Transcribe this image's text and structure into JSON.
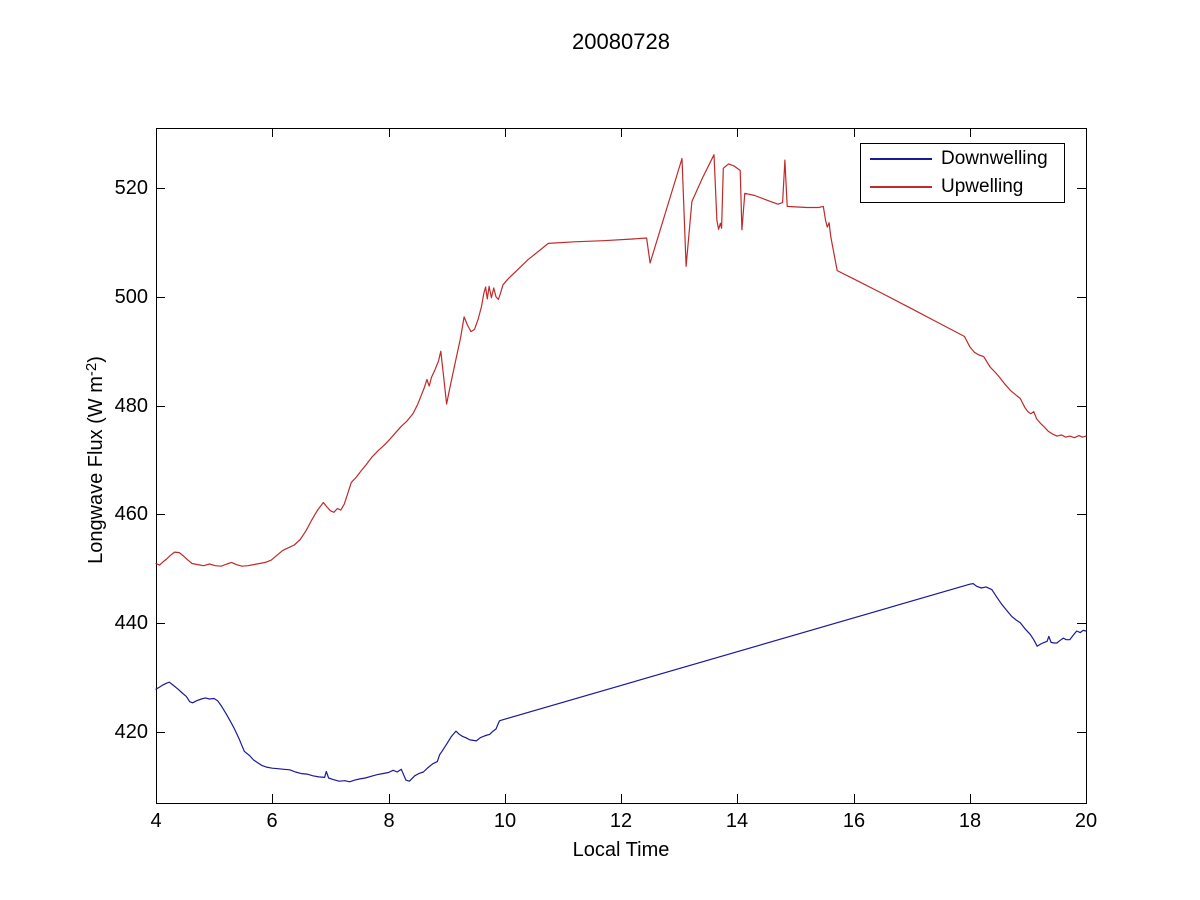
{
  "figure": {
    "background": "#ffffff"
  },
  "chart_data": {
    "type": "line",
    "title": "20080728",
    "xlabel": "Local Time",
    "ylabel": {
      "main": "Longwave Flux (W m",
      "sup": "-2",
      "end": ")"
    },
    "xlim": [
      4,
      20
    ],
    "ylim": [
      407,
      531
    ],
    "xticks": [
      4,
      6,
      8,
      10,
      12,
      14,
      16,
      18,
      20
    ],
    "yticks": [
      420,
      440,
      460,
      480,
      500,
      520
    ],
    "grid": false,
    "box": true,
    "axis_color": "#000000",
    "legend": {
      "position": "top-right",
      "entries": [
        {
          "label": "Downwelling",
          "color": "#1A1A99"
        },
        {
          "label": "Upwelling",
          "color": "#C02A2A"
        }
      ]
    },
    "series": [
      {
        "name": "Downwelling",
        "color": "#1A1A99",
        "points": [
          [
            4.0,
            427.9
          ],
          [
            4.06,
            428.3
          ],
          [
            4.12,
            428.7
          ],
          [
            4.18,
            429.0
          ],
          [
            4.23,
            429.2
          ],
          [
            4.3,
            428.6
          ],
          [
            4.38,
            427.9
          ],
          [
            4.45,
            427.2
          ],
          [
            4.52,
            426.6
          ],
          [
            4.58,
            425.6
          ],
          [
            4.63,
            425.4
          ],
          [
            4.7,
            425.8
          ],
          [
            4.78,
            426.1
          ],
          [
            4.85,
            426.3
          ],
          [
            4.92,
            426.1
          ],
          [
            5.0,
            426.2
          ],
          [
            5.06,
            425.8
          ],
          [
            5.12,
            424.9
          ],
          [
            5.2,
            423.5
          ],
          [
            5.28,
            422.0
          ],
          [
            5.35,
            420.6
          ],
          [
            5.43,
            418.8
          ],
          [
            5.52,
            416.5
          ],
          [
            5.61,
            415.7
          ],
          [
            5.68,
            414.9
          ],
          [
            5.75,
            414.4
          ],
          [
            5.82,
            413.9
          ],
          [
            5.9,
            413.6
          ],
          [
            6.0,
            413.4
          ],
          [
            6.1,
            413.3
          ],
          [
            6.2,
            413.2
          ],
          [
            6.3,
            413.1
          ],
          [
            6.4,
            412.7
          ],
          [
            6.5,
            412.4
          ],
          [
            6.6,
            412.3
          ],
          [
            6.7,
            412.0
          ],
          [
            6.8,
            411.8
          ],
          [
            6.9,
            411.7
          ],
          [
            6.93,
            412.8
          ],
          [
            6.97,
            411.6
          ],
          [
            7.05,
            411.3
          ],
          [
            7.15,
            411.0
          ],
          [
            7.25,
            411.1
          ],
          [
            7.33,
            410.9
          ],
          [
            7.42,
            411.2
          ],
          [
            7.5,
            411.4
          ],
          [
            7.6,
            411.6
          ],
          [
            7.7,
            411.9
          ],
          [
            7.8,
            412.2
          ],
          [
            7.9,
            412.4
          ],
          [
            8.0,
            412.6
          ],
          [
            8.08,
            413.0
          ],
          [
            8.15,
            412.7
          ],
          [
            8.22,
            413.2
          ],
          [
            8.3,
            411.2
          ],
          [
            8.36,
            411.0
          ],
          [
            8.45,
            412.0
          ],
          [
            8.52,
            412.4
          ],
          [
            8.6,
            412.7
          ],
          [
            8.68,
            413.5
          ],
          [
            8.76,
            414.2
          ],
          [
            8.84,
            414.6
          ],
          [
            8.88,
            415.9
          ],
          [
            8.92,
            416.5
          ],
          [
            9.0,
            417.8
          ],
          [
            9.08,
            419.2
          ],
          [
            9.16,
            420.2
          ],
          [
            9.22,
            419.6
          ],
          [
            9.28,
            419.2
          ],
          [
            9.33,
            419.0
          ],
          [
            9.4,
            418.6
          ],
          [
            9.46,
            418.5
          ],
          [
            9.51,
            418.4
          ],
          [
            9.58,
            419.0
          ],
          [
            9.65,
            419.3
          ],
          [
            9.7,
            419.5
          ],
          [
            9.74,
            419.6
          ],
          [
            9.8,
            420.2
          ],
          [
            9.85,
            420.6
          ],
          [
            9.88,
            421.4
          ],
          [
            9.91,
            422.1
          ],
          [
            9.97,
            422.3
          ],
          [
            18.0,
            447.2
          ],
          [
            18.06,
            447.3
          ],
          [
            18.12,
            446.8
          ],
          [
            18.2,
            446.5
          ],
          [
            18.28,
            446.7
          ],
          [
            18.38,
            446.2
          ],
          [
            18.46,
            444.9
          ],
          [
            18.55,
            443.5
          ],
          [
            18.64,
            442.3
          ],
          [
            18.72,
            441.3
          ],
          [
            18.8,
            440.6
          ],
          [
            18.87,
            440.1
          ],
          [
            18.95,
            439.0
          ],
          [
            19.04,
            438.0
          ],
          [
            19.1,
            437.0
          ],
          [
            19.16,
            435.8
          ],
          [
            19.22,
            436.2
          ],
          [
            19.28,
            436.5
          ],
          [
            19.33,
            436.7
          ],
          [
            19.36,
            437.6
          ],
          [
            19.4,
            436.5
          ],
          [
            19.45,
            436.4
          ],
          [
            19.5,
            436.4
          ],
          [
            19.56,
            436.9
          ],
          [
            19.61,
            437.3
          ],
          [
            19.66,
            437.0
          ],
          [
            19.72,
            437.0
          ],
          [
            19.78,
            437.8
          ],
          [
            19.84,
            438.6
          ],
          [
            19.9,
            438.3
          ],
          [
            19.95,
            438.7
          ],
          [
            20.0,
            438.6
          ]
        ]
      },
      {
        "name": "Upwelling",
        "color": "#C02A2A",
        "points": [
          [
            4.0,
            451.0
          ],
          [
            4.06,
            450.7
          ],
          [
            4.12,
            451.3
          ],
          [
            4.18,
            451.8
          ],
          [
            4.25,
            452.5
          ],
          [
            4.32,
            453.1
          ],
          [
            4.4,
            453.0
          ],
          [
            4.48,
            452.3
          ],
          [
            4.55,
            451.6
          ],
          [
            4.62,
            451.0
          ],
          [
            4.72,
            450.8
          ],
          [
            4.82,
            450.6
          ],
          [
            4.92,
            450.9
          ],
          [
            5.02,
            450.6
          ],
          [
            5.12,
            450.5
          ],
          [
            5.22,
            450.9
          ],
          [
            5.3,
            451.2
          ],
          [
            5.38,
            450.8
          ],
          [
            5.48,
            450.5
          ],
          [
            5.58,
            450.6
          ],
          [
            5.68,
            450.8
          ],
          [
            5.78,
            451.0
          ],
          [
            5.88,
            451.2
          ],
          [
            5.98,
            451.6
          ],
          [
            6.08,
            452.5
          ],
          [
            6.18,
            453.4
          ],
          [
            6.28,
            453.9
          ],
          [
            6.38,
            454.4
          ],
          [
            6.48,
            455.4
          ],
          [
            6.58,
            457.0
          ],
          [
            6.68,
            459.0
          ],
          [
            6.78,
            460.8
          ],
          [
            6.88,
            462.2
          ],
          [
            6.94,
            461.4
          ],
          [
            7.0,
            460.7
          ],
          [
            7.06,
            460.4
          ],
          [
            7.12,
            461.1
          ],
          [
            7.18,
            460.8
          ],
          [
            7.24,
            461.9
          ],
          [
            7.3,
            463.9
          ],
          [
            7.36,
            465.9
          ],
          [
            7.44,
            466.8
          ],
          [
            7.52,
            467.9
          ],
          [
            7.62,
            469.2
          ],
          [
            7.72,
            470.6
          ],
          [
            7.82,
            471.7
          ],
          [
            7.92,
            472.7
          ],
          [
            8.02,
            473.8
          ],
          [
            8.12,
            475.0
          ],
          [
            8.22,
            476.2
          ],
          [
            8.32,
            477.2
          ],
          [
            8.42,
            478.5
          ],
          [
            8.5,
            480.2
          ],
          [
            8.56,
            481.8
          ],
          [
            8.62,
            483.4
          ],
          [
            8.66,
            484.8
          ],
          [
            8.7,
            483.6
          ],
          [
            8.74,
            485.2
          ],
          [
            8.8,
            486.6
          ],
          [
            8.86,
            488.2
          ],
          [
            8.9,
            490.0
          ],
          [
            8.95,
            485.2
          ],
          [
            9.0,
            480.3
          ],
          [
            9.06,
            483.5
          ],
          [
            9.12,
            486.5
          ],
          [
            9.18,
            489.5
          ],
          [
            9.24,
            492.5
          ],
          [
            9.3,
            496.3
          ],
          [
            9.36,
            494.8
          ],
          [
            9.42,
            493.6
          ],
          [
            9.48,
            494.0
          ],
          [
            9.54,
            495.8
          ],
          [
            9.6,
            498.2
          ],
          [
            9.64,
            500.6
          ],
          [
            9.67,
            501.8
          ],
          [
            9.7,
            499.6
          ],
          [
            9.73,
            501.9
          ],
          [
            9.77,
            499.8
          ],
          [
            9.81,
            501.6
          ],
          [
            9.85,
            500.0
          ],
          [
            9.89,
            499.5
          ],
          [
            9.93,
            500.8
          ],
          [
            9.97,
            502.2
          ],
          [
            10.05,
            503.2
          ],
          [
            10.4,
            506.8
          ],
          [
            10.75,
            509.8
          ],
          [
            11.2,
            510.1
          ],
          [
            11.7,
            510.3
          ],
          [
            12.2,
            510.6
          ],
          [
            12.44,
            510.8
          ],
          [
            12.5,
            506.2
          ],
          [
            13.05,
            525.4
          ],
          [
            13.12,
            505.6
          ],
          [
            13.22,
            517.5
          ],
          [
            13.4,
            521.8
          ],
          [
            13.6,
            526.1
          ],
          [
            13.65,
            514.0
          ],
          [
            13.68,
            512.4
          ],
          [
            13.71,
            513.5
          ],
          [
            13.73,
            512.6
          ],
          [
            13.76,
            523.6
          ],
          [
            13.85,
            524.4
          ],
          [
            13.95,
            524.0
          ],
          [
            14.05,
            523.2
          ],
          [
            14.08,
            512.3
          ],
          [
            14.13,
            519.0
          ],
          [
            14.3,
            518.6
          ],
          [
            14.5,
            517.8
          ],
          [
            14.7,
            517.0
          ],
          [
            14.78,
            517.3
          ],
          [
            14.82,
            525.1
          ],
          [
            14.86,
            516.6
          ],
          [
            15.0,
            516.5
          ],
          [
            15.2,
            516.4
          ],
          [
            15.4,
            516.4
          ],
          [
            15.48,
            516.6
          ],
          [
            15.52,
            514.0
          ],
          [
            15.55,
            512.8
          ],
          [
            15.58,
            513.6
          ],
          [
            15.61,
            511.0
          ],
          [
            15.72,
            504.8
          ],
          [
            16.0,
            503.3
          ],
          [
            16.46,
            500.8
          ],
          [
            17.0,
            497.8
          ],
          [
            17.5,
            495.0
          ],
          [
            17.91,
            492.7
          ],
          [
            18.0,
            490.8
          ],
          [
            18.08,
            489.8
          ],
          [
            18.16,
            489.3
          ],
          [
            18.24,
            489.0
          ],
          [
            18.35,
            487.1
          ],
          [
            18.45,
            486.0
          ],
          [
            18.52,
            485.1
          ],
          [
            18.6,
            484.0
          ],
          [
            18.7,
            482.8
          ],
          [
            18.8,
            481.9
          ],
          [
            18.87,
            481.3
          ],
          [
            18.95,
            479.6
          ],
          [
            19.0,
            478.9
          ],
          [
            19.05,
            478.5
          ],
          [
            19.1,
            478.9
          ],
          [
            19.15,
            477.6
          ],
          [
            19.22,
            476.7
          ],
          [
            19.28,
            476.1
          ],
          [
            19.35,
            475.3
          ],
          [
            19.42,
            474.8
          ],
          [
            19.5,
            474.4
          ],
          [
            19.58,
            474.6
          ],
          [
            19.65,
            474.2
          ],
          [
            19.72,
            474.4
          ],
          [
            19.8,
            474.1
          ],
          [
            19.88,
            474.5
          ],
          [
            19.94,
            474.2
          ],
          [
            20.0,
            474.4
          ]
        ]
      }
    ]
  }
}
